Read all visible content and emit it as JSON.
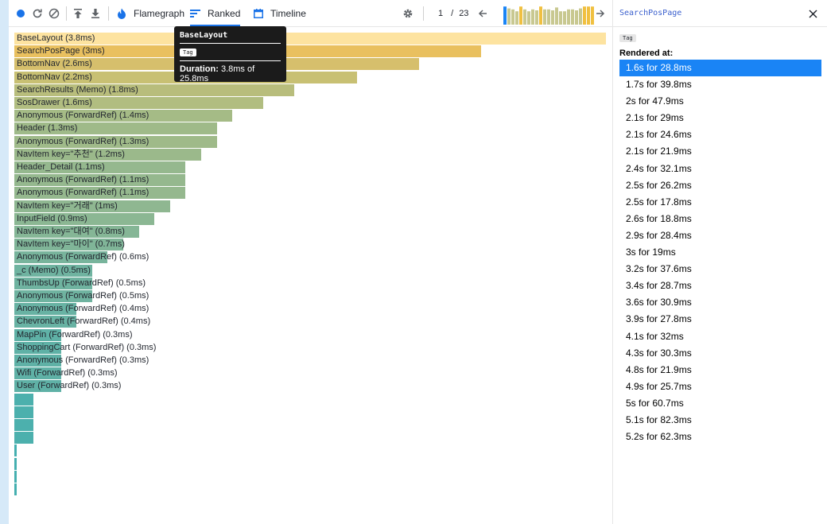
{
  "toolbar": {
    "tabs": [
      {
        "label": "Flamegraph",
        "icon": "flame-icon",
        "active": false
      },
      {
        "label": "Ranked",
        "icon": "ranked-icon",
        "active": true
      },
      {
        "label": "Timeline",
        "icon": "calendar-icon",
        "active": false
      }
    ],
    "commit_current": "1",
    "commit_separator": "/",
    "commit_total": "23",
    "colors": {
      "accent": "#1a73e8",
      "record": "#1a73e8",
      "icon": "#5f6368"
    }
  },
  "commit_chart": {
    "heights": [
      0.95,
      0.85,
      0.8,
      0.7,
      0.95,
      0.8,
      0.7,
      0.8,
      0.75,
      0.95,
      0.8,
      0.8,
      0.75,
      0.9,
      0.7,
      0.7,
      0.8,
      0.8,
      0.75,
      0.85,
      0.95,
      0.95,
      0.95
    ],
    "colors": {
      "selected": "#1a84f5",
      "low": "#c8c890",
      "high": "#f0c040"
    }
  },
  "ranked": {
    "bars": [
      {
        "label": "BaseLayout (3.8ms)",
        "duration": 3.8,
        "color": "#fde3a0"
      },
      {
        "label": "SearchPosPage (3ms)",
        "duration": 3.0,
        "color": "#e9c05f"
      },
      {
        "label": "BottomNav (2.6ms)",
        "duration": 2.6,
        "color": "#d6bf6c"
      },
      {
        "label": "BottomNav (2.2ms)",
        "duration": 2.2,
        "color": "#c8c073"
      },
      {
        "label": "SearchResults (Memo) (1.8ms)",
        "duration": 1.8,
        "color": "#b8bd7c"
      },
      {
        "label": "SosDrawer (1.6ms)",
        "duration": 1.6,
        "color": "#b1bd80"
      },
      {
        "label": "Anonymous (ForwardRef) (1.4ms)",
        "duration": 1.4,
        "color": "#a5bb86"
      },
      {
        "label": "Header (1.3ms)",
        "duration": 1.3,
        "color": "#9fba89"
      },
      {
        "label": "Anonymous (ForwardRef) (1.3ms)",
        "duration": 1.3,
        "color": "#9fba89"
      },
      {
        "label": "NavItem key=\"추천\" (1.2ms)",
        "duration": 1.2,
        "color": "#9bb98b"
      },
      {
        "label": "Header_Detail (1.1ms)",
        "duration": 1.1,
        "color": "#95b88e"
      },
      {
        "label": "Anonymous (ForwardRef) (1.1ms)",
        "duration": 1.1,
        "color": "#95b88e"
      },
      {
        "label": "Anonymous (ForwardRef) (1.1ms)",
        "duration": 1.1,
        "color": "#95b88e"
      },
      {
        "label": "NavItem key=\"거래\" (1ms)",
        "duration": 1.0,
        "color": "#8fb791"
      },
      {
        "label": "InputField (0.9ms)",
        "duration": 0.9,
        "color": "#8bb793"
      },
      {
        "label": "NavItem key=\"대여\" (0.8ms)",
        "duration": 0.8,
        "color": "#85b696"
      },
      {
        "label": "NavItem key=\"마이\" (0.7ms)",
        "duration": 0.7,
        "color": "#80b598"
      },
      {
        "label": "Anonymous (ForwardRef) (0.6ms)",
        "duration": 0.6,
        "color": "#78b49c"
      },
      {
        "label": "_c (Memo) (0.5ms)",
        "duration": 0.5,
        "color": "#6fb3a0"
      },
      {
        "label": "ThumbsUp (ForwardRef) (0.5ms)",
        "duration": 0.5,
        "color": "#6fb3a0"
      },
      {
        "label": "Anonymous (ForwardRef) (0.5ms)",
        "duration": 0.5,
        "color": "#6fb3a0"
      },
      {
        "label": "Anonymous (ForwardRef) (0.4ms)",
        "duration": 0.4,
        "color": "#68b2a3"
      },
      {
        "label": "ChevronLeft (ForwardRef) (0.4ms)",
        "duration": 0.4,
        "color": "#68b2a3"
      },
      {
        "label": "MapPin (ForwardRef) (0.3ms)",
        "duration": 0.3,
        "color": "#5fb1a6"
      },
      {
        "label": "ShoppingCart (ForwardRef) (0.3ms)",
        "duration": 0.3,
        "color": "#5fb1a6"
      },
      {
        "label": "Anonymous (ForwardRef) (0.3ms)",
        "duration": 0.3,
        "color": "#5fb1a6"
      },
      {
        "label": "Wifi (ForwardRef) (0.3ms)",
        "duration": 0.3,
        "color": "#5fb1a6"
      },
      {
        "label": "User (ForwardRef) (0.3ms)",
        "duration": 0.3,
        "color": "#5fb1a6"
      },
      {
        "label": "",
        "duration": 0.1,
        "color": "#4cb0ad"
      },
      {
        "label": "",
        "duration": 0.1,
        "color": "#4cb0ad"
      },
      {
        "label": "",
        "duration": 0.1,
        "color": "#4cb0ad"
      },
      {
        "label": "",
        "duration": 0.1,
        "color": "#4cb0ad"
      },
      {
        "label": "",
        "duration": 0.01,
        "color": "#45afb0"
      },
      {
        "label": "",
        "duration": 0.01,
        "color": "#45afb0"
      },
      {
        "label": "",
        "duration": 0.01,
        "color": "#45afb0"
      },
      {
        "label": "",
        "duration": 0.01,
        "color": "#45afb0"
      }
    ]
  },
  "tooltip": {
    "title": "BaseLayout",
    "badge": "Tag",
    "duration_label": "Duration:",
    "duration_value": "3.8ms of 25.8ms"
  },
  "sidebar": {
    "title": "SearchPosPage",
    "badge": "Tag",
    "rendered_at_label": "Rendered at:",
    "renders": [
      "1.6s for 28.8ms",
      "1.7s for 39.8ms",
      "2s for 47.9ms",
      "2.1s for 29ms",
      "2.1s for 24.6ms",
      "2.1s for 21.9ms",
      "2.4s for 32.1ms",
      "2.5s for 26.2ms",
      "2.5s for 17.8ms",
      "2.6s for 18.8ms",
      "2.9s for 28.4ms",
      "3s for 19ms",
      "3.2s for 37.6ms",
      "3.4s for 28.7ms",
      "3.6s for 30.9ms",
      "3.9s for 27.8ms",
      "4.1s for 32ms",
      "4.3s for 30.3ms",
      "4.8s for 21.9ms",
      "4.9s for 25.7ms",
      "5s for 60.7ms",
      "5.1s for 82.3ms",
      "5.2s for 62.3ms"
    ],
    "selected_index": 0
  }
}
